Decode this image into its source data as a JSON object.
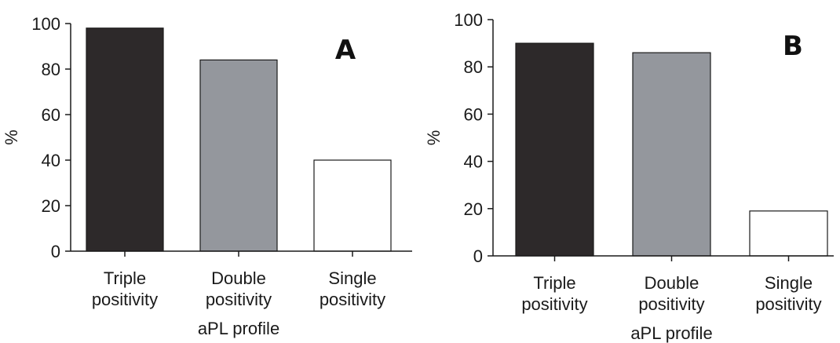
{
  "chart_data": [
    {
      "type": "bar",
      "panel_label": "A",
      "categories": [
        [
          "Triple",
          "positivity"
        ],
        [
          "Double",
          "positivity"
        ],
        [
          "Single",
          "positivity"
        ]
      ],
      "values": [
        98,
        84,
        40
      ],
      "bar_colors": [
        "#2d292a",
        "#94979d",
        "#ffffff"
      ],
      "xlabel": "aPL profile",
      "ylabel": "%",
      "ylim": [
        0,
        100
      ],
      "yticks": [
        0,
        20,
        40,
        60,
        80,
        100
      ],
      "grid": false
    },
    {
      "type": "bar",
      "panel_label": "B",
      "categories": [
        [
          "Triple",
          "positivity"
        ],
        [
          "Double",
          "positivity"
        ],
        [
          "Single",
          "positivity"
        ]
      ],
      "values": [
        90,
        86,
        19
      ],
      "bar_colors": [
        "#2d292a",
        "#94979d",
        "#ffffff"
      ],
      "xlabel": "aPL profile",
      "ylabel": "%",
      "ylim": [
        0,
        100
      ],
      "yticks": [
        0,
        20,
        40,
        60,
        80,
        100
      ],
      "grid": false
    }
  ]
}
